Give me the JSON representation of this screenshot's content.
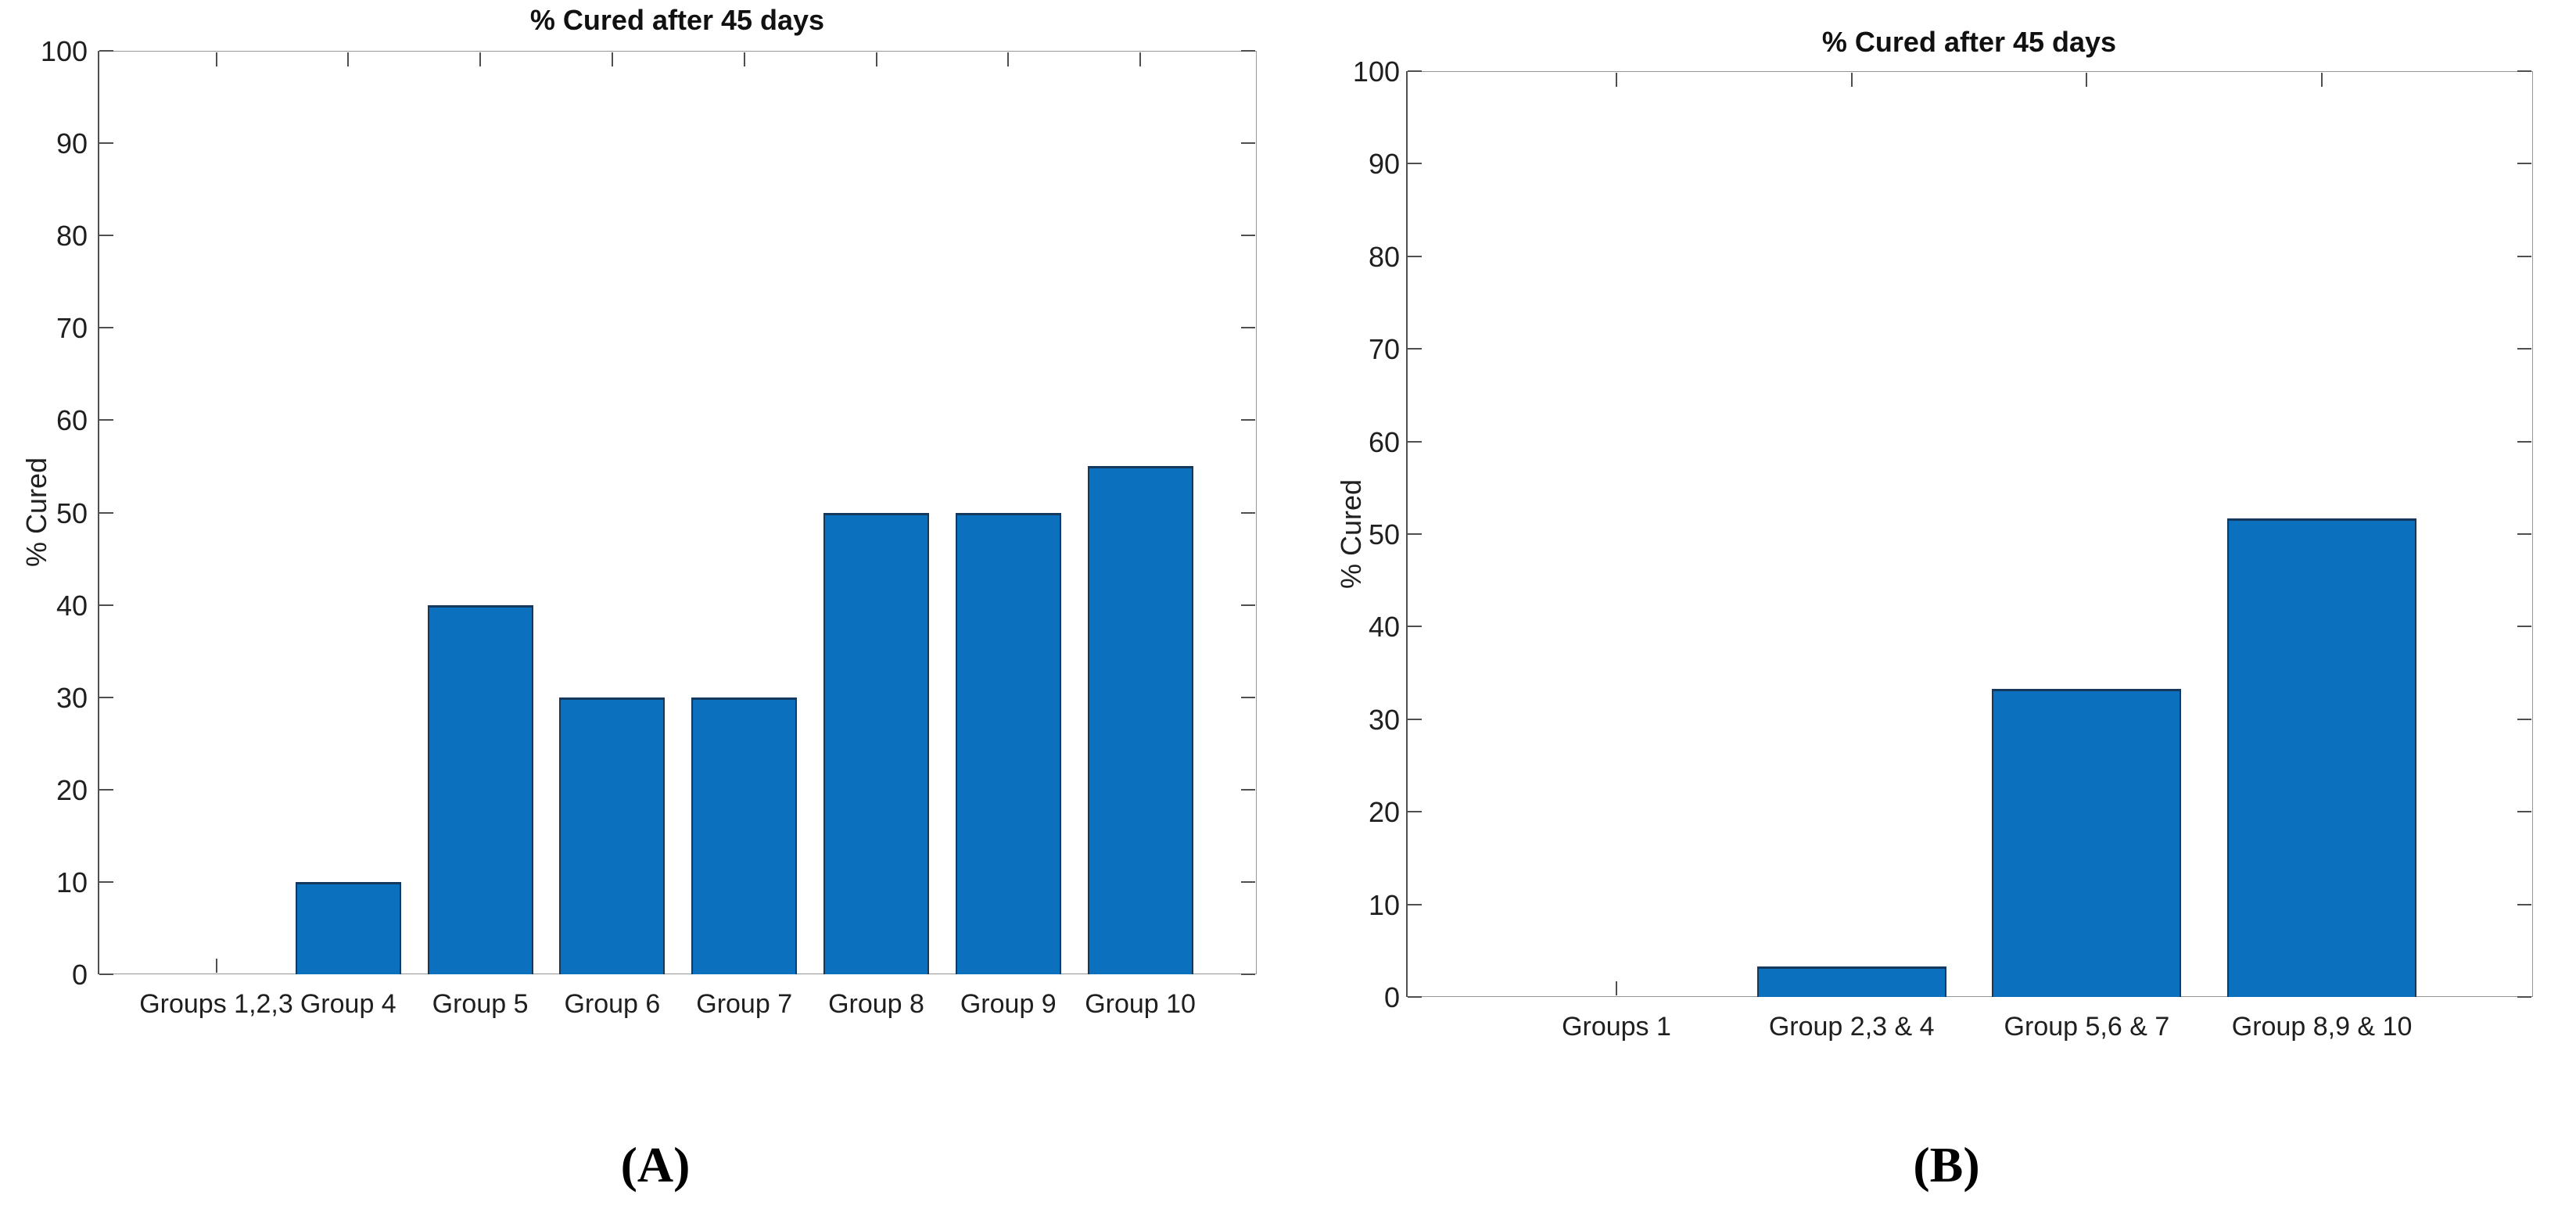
{
  "figure": {
    "background": "#ffffff",
    "captions": [
      {
        "label": "(A)"
      },
      {
        "label": "(B)"
      }
    ]
  },
  "chart_data": [
    {
      "id": "A",
      "type": "bar",
      "title": "% Cured after 45 days",
      "ylabel": "% Cured",
      "xlabel": "",
      "categories": [
        "Groups 1,2,3",
        "Group 4",
        "Group 5",
        "Group 6",
        "Group 7",
        "Group 8",
        "Group 9",
        "Group 10"
      ],
      "values": [
        0,
        10,
        40,
        30,
        30,
        50,
        50,
        55
      ],
      "ylim": [
        0,
        100
      ],
      "yticks": [
        0,
        10,
        20,
        30,
        40,
        50,
        60,
        70,
        80,
        90,
        100
      ],
      "grid": false,
      "legend": null,
      "bar_color": "#0b71bf",
      "bar_edge_color": "#14395c",
      "axis_color": "#979797",
      "tick_color": "#4f4f4f",
      "text_color": "#1f1f1f"
    },
    {
      "id": "B",
      "type": "bar",
      "title": "% Cured after 45 days",
      "ylabel": "% Cured",
      "xlabel": "",
      "categories": [
        "Groups 1",
        "Group 2,3 & 4",
        "Group 5,6 & 7",
        "Group 8,9 & 10"
      ],
      "values": [
        0,
        3.3,
        33.3,
        51.7
      ],
      "ylim": [
        0,
        100
      ],
      "yticks": [
        0,
        10,
        20,
        30,
        40,
        50,
        60,
        70,
        80,
        90,
        100
      ],
      "grid": false,
      "legend": null,
      "bar_color": "#0b71bf",
      "bar_edge_color": "#14395c",
      "axis_color": "#979797",
      "tick_color": "#4f4f4f",
      "text_color": "#1f1f1f"
    }
  ]
}
